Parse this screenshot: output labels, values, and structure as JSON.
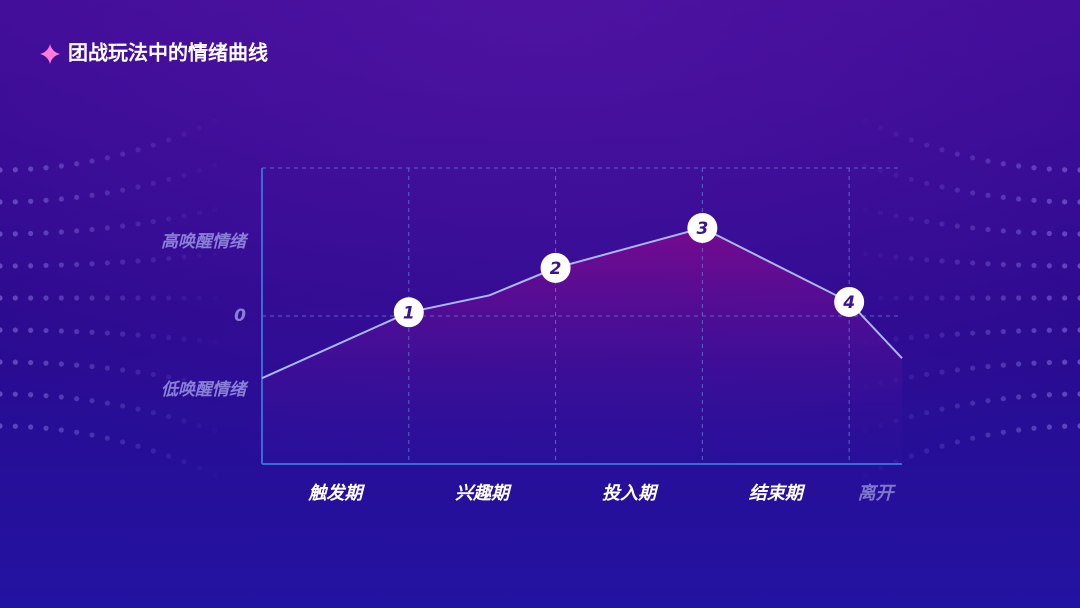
{
  "chart_data": {
    "type": "area",
    "title": "团战玩法中的情绪曲线",
    "categories": [
      "触发期",
      "兴趣期",
      "投入期",
      "结束期",
      "离开"
    ],
    "x": [
      0,
      1,
      1.55,
      2,
      3,
      4,
      4.36
    ],
    "values": [
      -0.84,
      0.05,
      0.28,
      0.65,
      1.19,
      0.19,
      -0.57
    ],
    "point_labels": [
      null,
      "1",
      null,
      "2",
      "3",
      "4",
      null
    ],
    "color": "#a9b8ff",
    "fill": "#7a0a8e",
    "xlim": [
      0,
      4.36
    ],
    "xticks": [
      0,
      1,
      2,
      3,
      4
    ],
    "ylim": [
      -2,
      2
    ],
    "yticks": [
      {
        "value": 1,
        "label": "高唤醒情绪"
      },
      0,
      {
        "value": -1,
        "label": "低唤醒情绪"
      }
    ],
    "grid": true
  }
}
